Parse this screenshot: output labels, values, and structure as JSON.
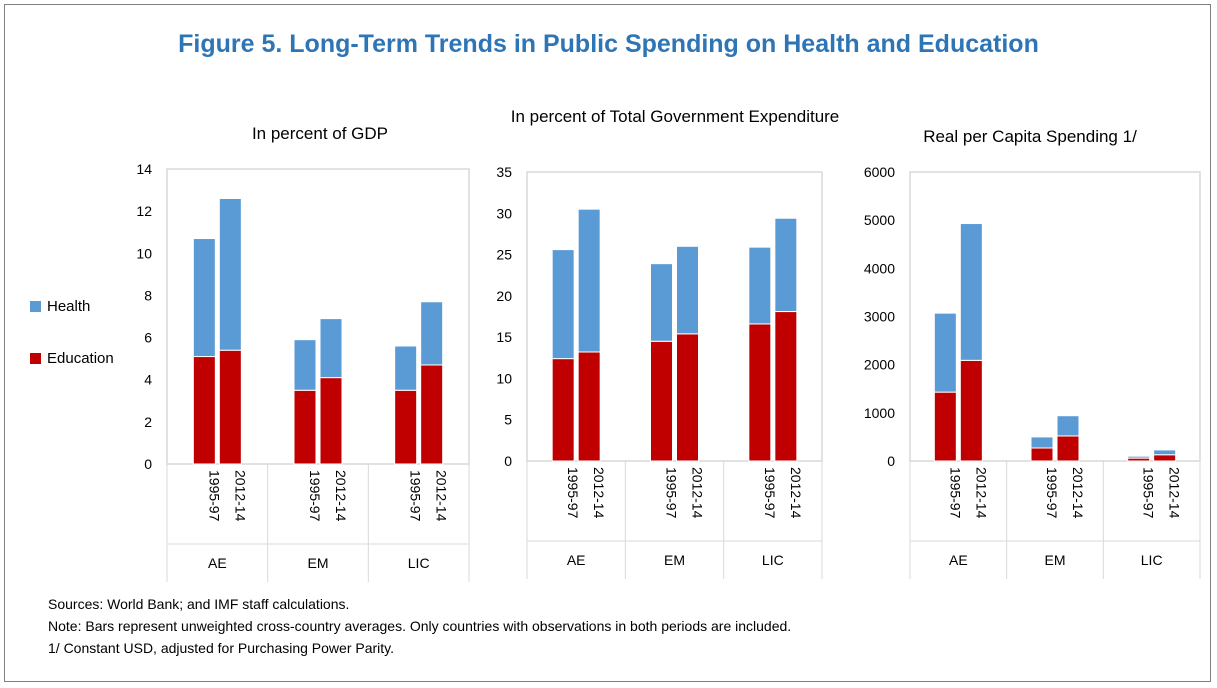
{
  "title": "Figure 5. Long-Term Trends in Public Spending on Health and Education",
  "legend": [
    {
      "label": "Health",
      "color": "#5b9bd5"
    },
    {
      "label": "Education",
      "color": "#c00000"
    }
  ],
  "chart_data": [
    {
      "type": "bar",
      "stacked": true,
      "title": "In percent of GDP",
      "groups": [
        "AE",
        "EM",
        "LIC"
      ],
      "categories": [
        "1995-97",
        "2012-14"
      ],
      "ylim": [
        0,
        14
      ],
      "yticks": [
        "0",
        "2",
        "4",
        "6",
        "8",
        "10",
        "12",
        "14"
      ],
      "series": [
        {
          "name": "Education",
          "color": "#c00000",
          "values": [
            [
              5.1,
              5.4
            ],
            [
              3.5,
              4.1
            ],
            [
              3.5,
              4.7
            ]
          ]
        },
        {
          "name": "Health",
          "color": "#5b9bd5",
          "values": [
            [
              5.6,
              7.2
            ],
            [
              2.4,
              2.8
            ],
            [
              2.1,
              3.0
            ]
          ]
        }
      ]
    },
    {
      "type": "bar",
      "stacked": true,
      "title": "In percent of Total Government Expenditure",
      "groups": [
        "AE",
        "EM",
        "LIC"
      ],
      "categories": [
        "1995-97",
        "2012-14"
      ],
      "ylim": [
        0,
        35
      ],
      "yticks": [
        "0",
        "5",
        "10",
        "15",
        "20",
        "25",
        "30",
        "35"
      ],
      "series": [
        {
          "name": "Education",
          "color": "#c00000",
          "values": [
            [
              12.4,
              13.2
            ],
            [
              14.5,
              15.4
            ],
            [
              16.6,
              18.1
            ]
          ]
        },
        {
          "name": "Health",
          "color": "#5b9bd5",
          "values": [
            [
              13.2,
              17.3
            ],
            [
              9.4,
              10.6
            ],
            [
              9.3,
              11.3
            ]
          ]
        }
      ]
    },
    {
      "type": "bar",
      "stacked": true,
      "title": "Real per Capita Spending 1/",
      "groups": [
        "AE",
        "EM",
        "LIC"
      ],
      "categories": [
        "1995-97",
        "2012-14"
      ],
      "ylim": [
        0,
        6000
      ],
      "yticks": [
        "0",
        "1000",
        "2000",
        "3000",
        "4000",
        "5000",
        "6000"
      ],
      "series": [
        {
          "name": "Education",
          "color": "#c00000",
          "values": [
            [
              1430,
              2090
            ],
            [
              270,
              520
            ],
            [
              60,
              130
            ]
          ]
        },
        {
          "name": "Health",
          "color": "#5b9bd5",
          "values": [
            [
              1640,
              2840
            ],
            [
              230,
              420
            ],
            [
              40,
              100
            ]
          ]
        }
      ]
    }
  ],
  "footer": [
    "Sources: World Bank; and IMF staff calculations.",
    "Note: Bars represent unweighted cross-country averages. Only countries with observations in both periods are included.",
    "1/ Constant USD, adjusted for Purchasing Power Parity."
  ]
}
